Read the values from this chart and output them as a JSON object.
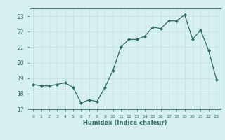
{
  "title": "",
  "xlabel": "Humidex (Indice chaleur)",
  "ylabel": "",
  "x_values": [
    0,
    1,
    2,
    3,
    4,
    5,
    6,
    7,
    8,
    9,
    10,
    11,
    12,
    13,
    14,
    15,
    16,
    17,
    18,
    19,
    20,
    21,
    22,
    23
  ],
  "y_values": [
    18.6,
    18.5,
    18.5,
    18.6,
    18.7,
    18.4,
    17.4,
    17.6,
    17.5,
    18.4,
    19.5,
    21.0,
    21.5,
    21.5,
    21.7,
    22.3,
    22.2,
    22.7,
    22.7,
    23.1,
    21.5,
    22.1,
    20.8,
    18.9
  ],
  "line_color": "#2d6b5e",
  "marker_color": "#2d6b5e",
  "bg_color": "#d6f0ef",
  "grid_color": "#c0e0de",
  "tick_color": "#2d6b5e",
  "label_color": "#2d6b5e",
  "ylim": [
    17,
    23.5
  ],
  "xlim": [
    -0.5,
    23.5
  ],
  "yticks": [
    17,
    18,
    19,
    20,
    21,
    22,
    23
  ],
  "xticks": [
    0,
    1,
    2,
    3,
    4,
    5,
    6,
    7,
    8,
    9,
    10,
    11,
    12,
    13,
    14,
    15,
    16,
    17,
    18,
    19,
    20,
    21,
    22,
    23
  ]
}
